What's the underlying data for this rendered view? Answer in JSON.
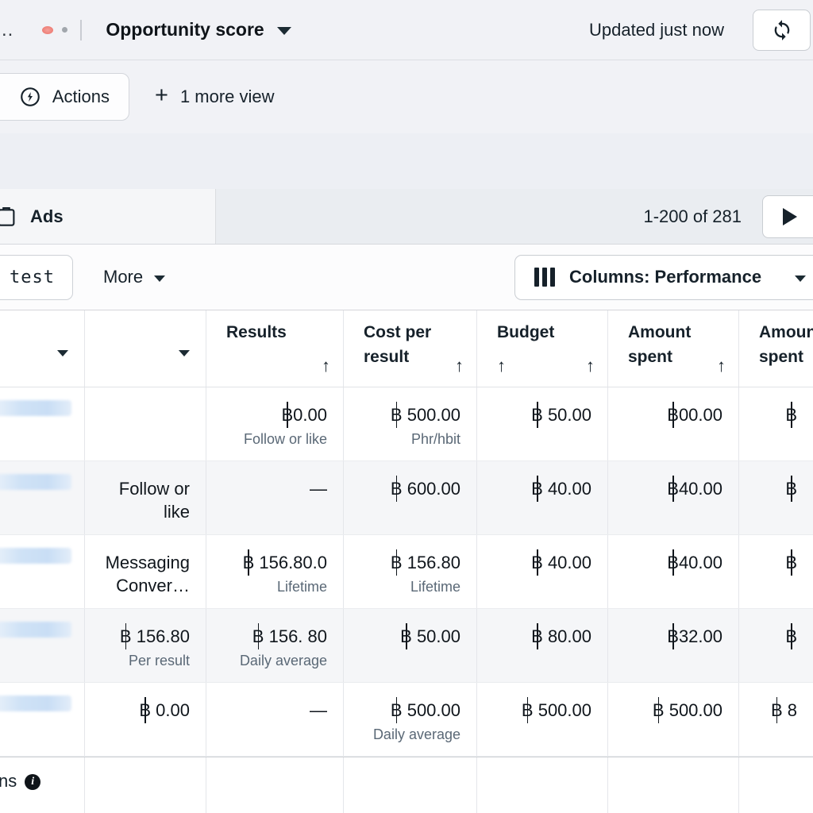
{
  "topbar": {
    "truncated_left": "..",
    "title": "Opportunity score",
    "updated": "Updated just now"
  },
  "viewbar": {
    "actions": "Actions",
    "plus": "+",
    "more_view": "1 more view"
  },
  "tabsbar": {
    "ads": "Ads",
    "pagination": "1-200 of 281"
  },
  "toolbar": {
    "test": "test",
    "more": "More",
    "columns": "Columns: Performance"
  },
  "table": {
    "headers": {
      "results": "Results",
      "cost_per_result": "Cost per result",
      "budget": "Budget",
      "amount_spent": "Amount spent",
      "amount_spent_overflow": "Amount spent",
      "sort_arrow": "↑"
    },
    "rows": [
      {
        "col2": {
          "value": "",
          "sub": ""
        },
        "results": {
          "value": "฿0.00",
          "sub": "Follow or like"
        },
        "cost": {
          "value": "฿ 500.00",
          "sub": "Phr/hbit"
        },
        "budget": {
          "value": "฿ 50.00",
          "sub": ""
        },
        "spent": {
          "value": "฿00.00",
          "sub": ""
        },
        "spent2": {
          "value": "฿",
          "sub": ""
        }
      },
      {
        "col2": {
          "value": "Follow or like",
          "sub": ""
        },
        "results": {
          "value": "—",
          "sub": ""
        },
        "cost": {
          "value": "฿ 600.00",
          "sub": ""
        },
        "budget": {
          "value": "฿ 40.00",
          "sub": ""
        },
        "spent": {
          "value": "฿40.00",
          "sub": ""
        },
        "spent2": {
          "value": "฿",
          "sub": ""
        }
      },
      {
        "col2": {
          "value": "Messaging Conver…",
          "sub": ""
        },
        "results": {
          "value": "฿ 156.80.0",
          "sub": "Lifetime"
        },
        "cost": {
          "value": "฿ 156.80",
          "sub": "Lifetime"
        },
        "budget": {
          "value": "฿ 40.00",
          "sub": ""
        },
        "spent": {
          "value": "฿40.00",
          "sub": ""
        },
        "spent2": {
          "value": "฿",
          "sub": ""
        }
      },
      {
        "col2": {
          "value": "฿ 156.80",
          "sub": "Per result"
        },
        "results": {
          "value": "฿ 156. 80",
          "sub": "Daily average"
        },
        "cost": {
          "value": "฿ 50.00",
          "sub": ""
        },
        "budget": {
          "value": "฿ 80.00",
          "sub": ""
        },
        "spent": {
          "value": "฿32.00",
          "sub": ""
        },
        "spent2": {
          "value": "฿",
          "sub": ""
        }
      },
      {
        "col2": {
          "value": "฿ 0.00",
          "sub": ""
        },
        "results": {
          "value": "—",
          "sub": ""
        },
        "cost": {
          "value": "฿ 500.00",
          "sub": "Daily average"
        },
        "budget": {
          "value": "฿ 500.00",
          "sub": ""
        },
        "spent": {
          "value": "฿ 500.00",
          "sub": ""
        },
        "spent2": {
          "value": "฿ 8",
          "sub": ""
        }
      }
    ],
    "footer": {
      "text": "ns",
      "info_glyph": "i"
    }
  },
  "colors": {
    "chrome_bg": "#f1f2f6",
    "row_alt": "#f5f6f8",
    "redacted_bar": "#cfe2f6",
    "subtext": "#5a6876",
    "red_dot": "#ee7d74",
    "text_dark": "#16212a"
  },
  "icons": {
    "refresh": "refresh-icon",
    "play": "next-page-icon",
    "columns": "columns-icon",
    "actions": "actions-icon",
    "ads": "ads-clipboard-icon",
    "info": "info-icon"
  }
}
